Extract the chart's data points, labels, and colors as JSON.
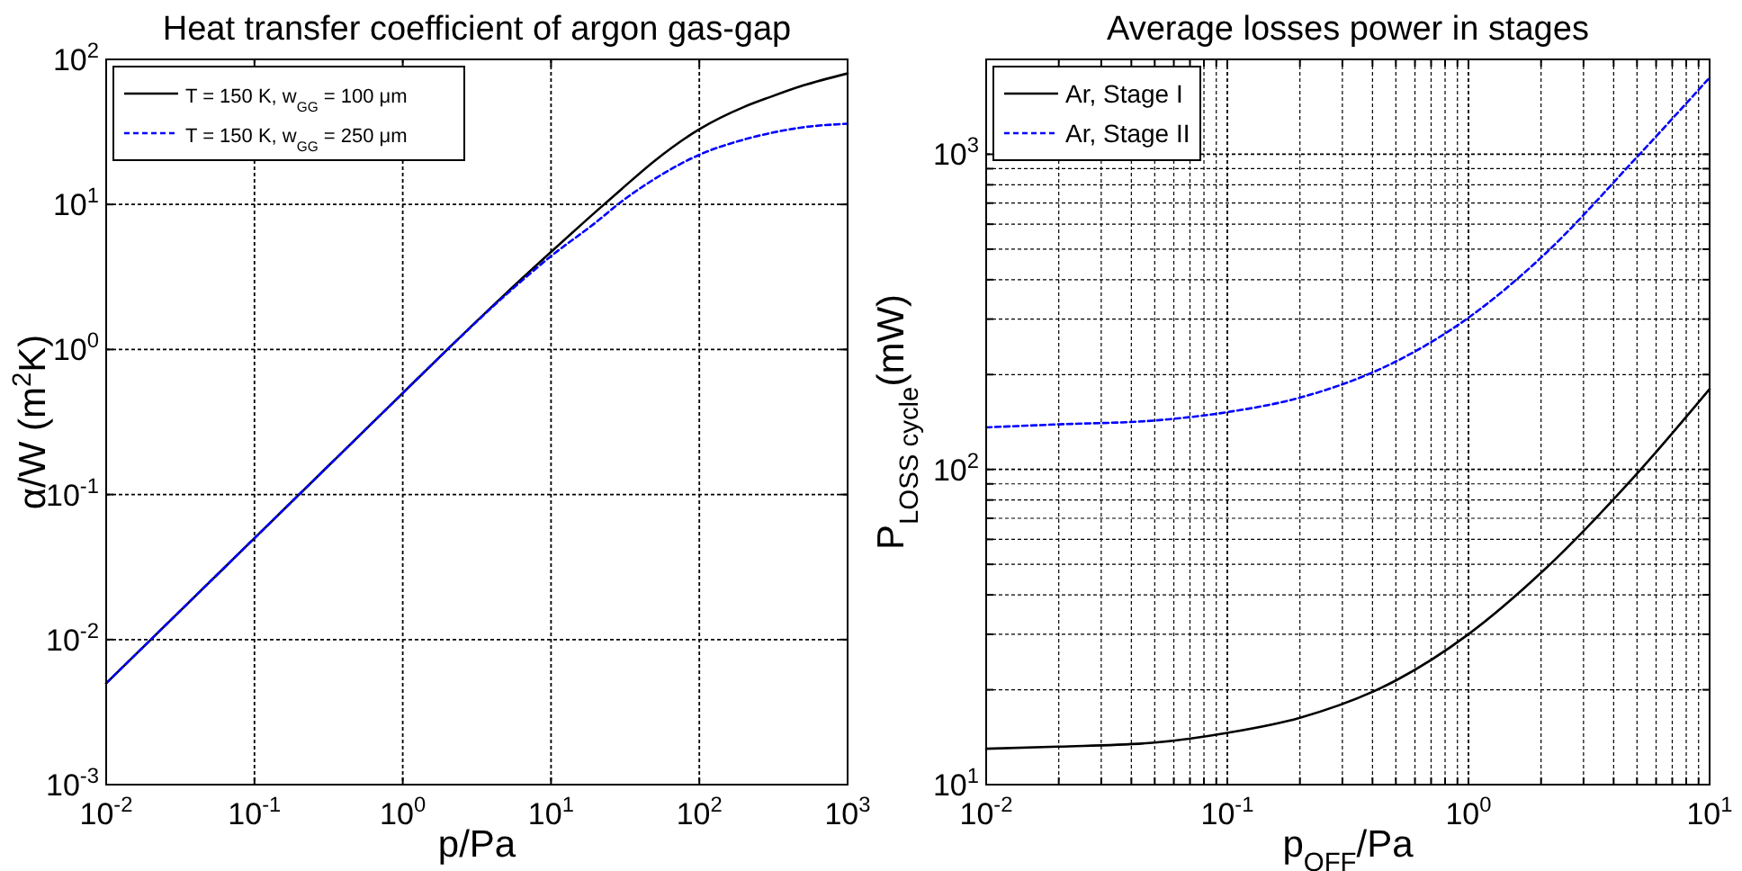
{
  "chart_data": [
    {
      "type": "line",
      "title": "Heat transfer coefficient of argon gas-gap",
      "xlabel": "p/Pa",
      "ylabel": "α/W (m$^{2}$K)",
      "log": "xy",
      "grid": true,
      "legend": "top left",
      "xlim": [
        0.01,
        1000
      ],
      "ylim": [
        0.001,
        100
      ],
      "xticks": [
        {
          "value": 0.01,
          "label": "10$^{-2}$"
        },
        {
          "value": 0.1,
          "label": "10$^{-1}$"
        },
        {
          "value": 1,
          "label": "10$^{0}$"
        },
        {
          "value": 10,
          "label": "10$^{1}$"
        },
        {
          "value": 100,
          "label": "10$^{2}$"
        },
        {
          "value": 1000,
          "label": "10$^{3}$"
        }
      ],
      "yticks": [
        {
          "value": 0.001,
          "label": "10$^{-3}$"
        },
        {
          "value": 0.01,
          "label": "10$^{-2}$"
        },
        {
          "value": 0.1,
          "label": "10$^{-1}$"
        },
        {
          "value": 1,
          "label": "10$^{0}$"
        },
        {
          "value": 10,
          "label": "10$^{1}$"
        },
        {
          "value": 100,
          "label": "10$^{2}$"
        }
      ],
      "x": [
        0.01,
        0.1,
        1,
        2,
        5,
        10,
        20,
        30,
        50,
        100,
        200,
        300,
        500,
        1000
      ],
      "series": [
        {
          "name": "T = 150 K, w$_{GG}$ = 100 μm",
          "color": "#000000",
          "line_style": "solid",
          "values": [
            0.005,
            0.05,
            0.5,
            1,
            2.45,
            4.7,
            8.9,
            12.8,
            20,
            33,
            47,
            55,
            66,
            80
          ]
        },
        {
          "name": "T = 150 K, w$_{GG}$ = 250 μm",
          "color": "#0000ff",
          "line_style": "dashed",
          "values": [
            0.005,
            0.05,
            0.5,
            1,
            2.4,
            4.4,
            7.5,
            10.5,
            15,
            22,
            28,
            31,
            34,
            36
          ]
        }
      ]
    },
    {
      "type": "line",
      "title": "Average losses power in stages",
      "xlabel": "p$_{OFF}$/Pa",
      "ylabel": "P$_{LOSS cycle}$(mW)",
      "log": "xy",
      "grid": true,
      "legend": "top left",
      "xlim": [
        0.01,
        10
      ],
      "ylim": [
        10,
        2000
      ],
      "xticks": [
        {
          "value": 0.01,
          "label": "10$^{-2}$"
        },
        {
          "value": 0.02,
          "label": null
        },
        {
          "value": 0.03,
          "label": null
        },
        {
          "value": 0.04,
          "label": null
        },
        {
          "value": 0.05,
          "label": null
        },
        {
          "value": 0.06,
          "label": null
        },
        {
          "value": 0.07,
          "label": null
        },
        {
          "value": 0.08,
          "label": null
        },
        {
          "value": 0.09,
          "label": null
        },
        {
          "value": 0.1,
          "label": "10$^{-1}$"
        },
        {
          "value": 0.2,
          "label": null
        },
        {
          "value": 0.3,
          "label": null
        },
        {
          "value": 0.4,
          "label": null
        },
        {
          "value": 0.5,
          "label": null
        },
        {
          "value": 0.6,
          "label": null
        },
        {
          "value": 0.7,
          "label": null
        },
        {
          "value": 0.8,
          "label": null
        },
        {
          "value": 0.9,
          "label": null
        },
        {
          "value": 1,
          "label": "10$^{0}$"
        },
        {
          "value": 2,
          "label": null
        },
        {
          "value": 3,
          "label": null
        },
        {
          "value": 4,
          "label": null
        },
        {
          "value": 5,
          "label": null
        },
        {
          "value": 6,
          "label": null
        },
        {
          "value": 7,
          "label": null
        },
        {
          "value": 8,
          "label": null
        },
        {
          "value": 9,
          "label": null
        },
        {
          "value": 10,
          "label": "10$^{1}$"
        }
      ],
      "yticks": [
        {
          "value": 10,
          "label": "10$^{1}$"
        },
        {
          "value": 20,
          "label": null
        },
        {
          "value": 30,
          "label": null
        },
        {
          "value": 40,
          "label": null
        },
        {
          "value": 50,
          "label": null
        },
        {
          "value": 60,
          "label": null
        },
        {
          "value": 70,
          "label": null
        },
        {
          "value": 80,
          "label": null
        },
        {
          "value": 90,
          "label": null
        },
        {
          "value": 100,
          "label": "10$^{2}$"
        },
        {
          "value": 200,
          "label": null
        },
        {
          "value": 300,
          "label": null
        },
        {
          "value": 400,
          "label": null
        },
        {
          "value": 500,
          "label": null
        },
        {
          "value": 600,
          "label": null
        },
        {
          "value": 700,
          "label": null
        },
        {
          "value": 800,
          "label": null
        },
        {
          "value": 900,
          "label": null
        },
        {
          "value": 1000,
          "label": "10$^{3}$"
        },
        {
          "value": 2000,
          "label": null
        }
      ],
      "x": [
        0.01,
        0.02,
        0.05,
        0.1,
        0.2,
        0.5,
        1,
        2,
        5,
        10
      ],
      "series": [
        {
          "name": "Ar, Stage I",
          "color": "#000000",
          "line_style": "solid",
          "values": [
            13,
            13.2,
            13.6,
            14.6,
            16.3,
            21.4,
            30,
            47,
            97,
            180
          ]
        },
        {
          "name": "Ar, Stage II",
          "color": "#0000ff",
          "line_style": "dashed",
          "values": [
            136,
            139,
            143,
            152,
            169,
            220,
            303,
            470,
            980,
            1750
          ]
        }
      ]
    }
  ]
}
